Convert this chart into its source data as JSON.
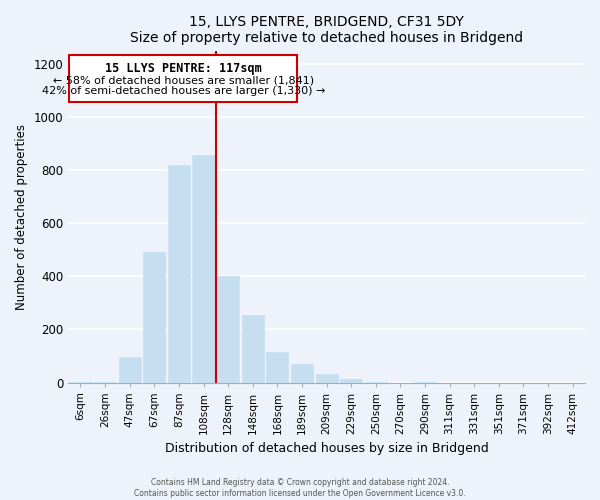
{
  "title": "15, LLYS PENTRE, BRIDGEND, CF31 5DY",
  "subtitle": "Size of property relative to detached houses in Bridgend",
  "xlabel": "Distribution of detached houses by size in Bridgend",
  "ylabel": "Number of detached properties",
  "bar_labels": [
    "6sqm",
    "26sqm",
    "47sqm",
    "67sqm",
    "87sqm",
    "108sqm",
    "128sqm",
    "148sqm",
    "168sqm",
    "189sqm",
    "209sqm",
    "229sqm",
    "250sqm",
    "270sqm",
    "290sqm",
    "311sqm",
    "331sqm",
    "351sqm",
    "371sqm",
    "392sqm",
    "412sqm"
  ],
  "bar_values": [
    3,
    3,
    95,
    490,
    820,
    855,
    400,
    255,
    115,
    68,
    33,
    13,
    3,
    0,
    3,
    0,
    0,
    0,
    0,
    0,
    0
  ],
  "bar_color": "#c5dff0",
  "property_line_label": "15 LLYS PENTRE: 117sqm",
  "annotation_line1": "← 58% of detached houses are smaller (1,841)",
  "annotation_line2": "42% of semi-detached houses are larger (1,330) →",
  "vline_color": "#cc0000",
  "box_edge_color": "#cc0000",
  "ylim": [
    0,
    1250
  ],
  "yticks": [
    0,
    200,
    400,
    600,
    800,
    1000,
    1200
  ],
  "footer_line1": "Contains HM Land Registry data © Crown copyright and database right 2024.",
  "footer_line2": "Contains public sector information licensed under the Open Government Licence v3.0.",
  "bg_color": "#eef2fb",
  "plot_bg_color": "#eef2fb",
  "grid_color": "#ffffff",
  "vline_x_index": 5.5
}
